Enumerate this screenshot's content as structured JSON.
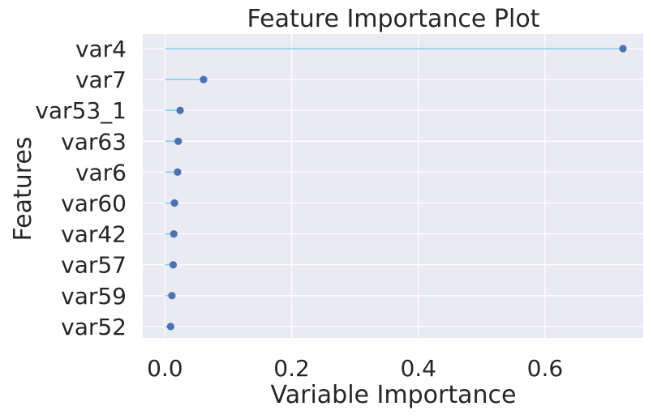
{
  "chart_data": {
    "type": "lollipop",
    "title": "Feature Importance Plot",
    "xlabel": "Variable Importance",
    "ylabel": "Features",
    "categories": [
      "var4",
      "var7",
      "var53_1",
      "var63",
      "var6",
      "var60",
      "var42",
      "var57",
      "var59",
      "var52"
    ],
    "values": [
      0.723,
      0.061,
      0.024,
      0.021,
      0.02,
      0.015,
      0.014,
      0.013,
      0.011,
      0.009
    ],
    "xlim": [
      -0.035,
      0.755
    ],
    "xticks": [
      0.0,
      0.2,
      0.4,
      0.6
    ],
    "xtick_labels": [
      "0.0",
      "0.2",
      "0.4",
      "0.6"
    ],
    "grid": true,
    "colors": {
      "background": "#eaeaf2",
      "grid": "#ffffff",
      "stem": "#87ceeb",
      "marker": "#4c72b0",
      "text": "#262626"
    }
  }
}
